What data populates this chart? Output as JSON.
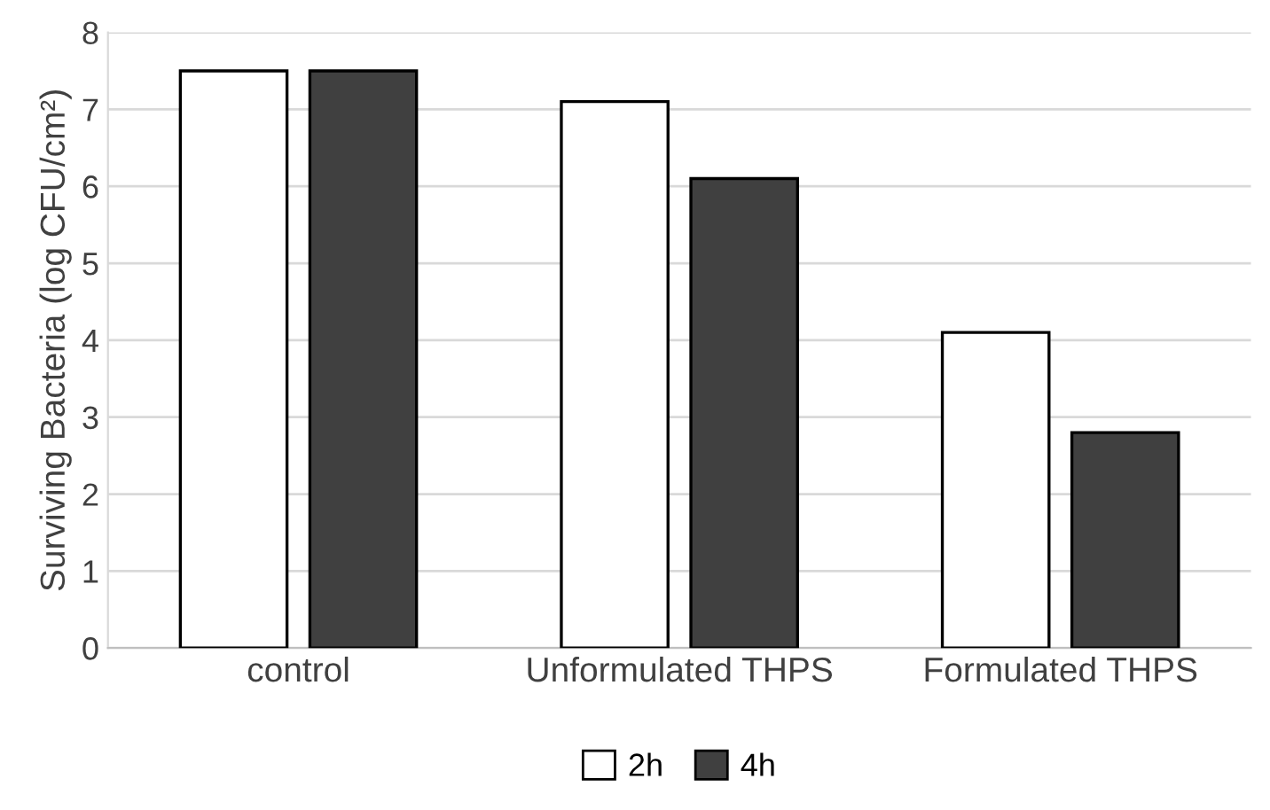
{
  "chart_data": {
    "type": "bar",
    "ylabel": "Surviving Bacteria (log CFU/cm²)",
    "categories": [
      "control",
      "Unformulated THPS",
      "Formulated THPS"
    ],
    "series": [
      {
        "name": "2h",
        "color": "#ffffff",
        "values": [
          7.5,
          7.1,
          4.1
        ]
      },
      {
        "name": "4h",
        "color": "#404040",
        "values": [
          7.5,
          6.1,
          2.8
        ]
      }
    ],
    "ylim": [
      0,
      8
    ],
    "yticks": [
      0,
      1,
      2,
      3,
      4,
      5,
      6,
      7,
      8
    ],
    "grid": "y",
    "legend": "bottom"
  }
}
